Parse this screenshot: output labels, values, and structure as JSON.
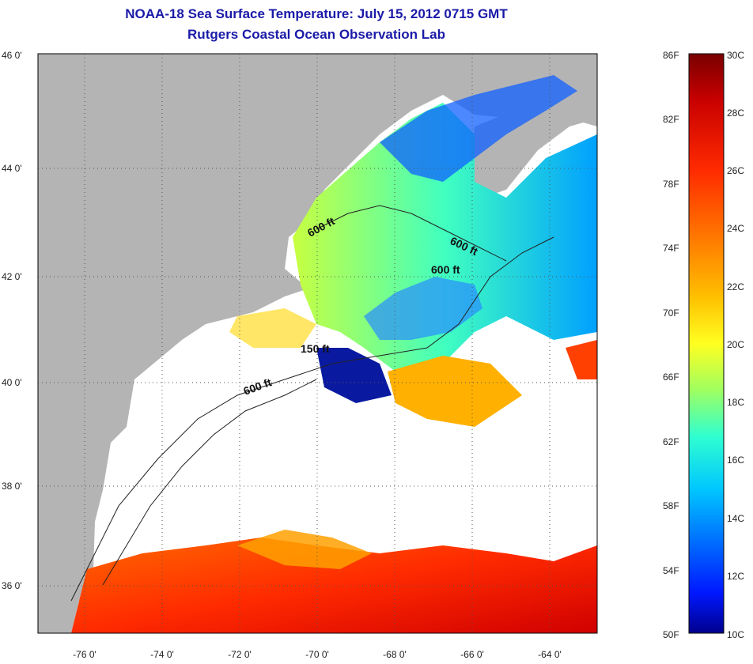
{
  "header": {
    "title": "NOAA-18 Sea Surface Temperature:  July 15, 2012 0715 GMT",
    "subtitle": "Rutgers Coastal Ocean Observation Lab"
  },
  "map": {
    "lon_ticks": [
      "-76 0'",
      "-74 0'",
      "-72 0'",
      "-70 0'",
      "-68 0'",
      "-66 0'",
      "-64 0'"
    ],
    "lat_ticks": [
      "46 0'",
      "44 0'",
      "42 0'",
      "40 0'",
      "38 0'",
      "36 0'"
    ],
    "contour_labels": [
      "600 ft",
      "600 ft",
      "600 ft",
      "150 ft",
      "600 ft"
    ],
    "colors": {
      "land": "#b4b4b4",
      "cloud": "#ffffff",
      "grid": "#555555"
    }
  },
  "colorbar": {
    "fahrenheit_labels": [
      "86F",
      "82F",
      "78F",
      "74F",
      "70F",
      "66F",
      "62F",
      "58F",
      "54F",
      "50F"
    ],
    "celsius_labels": [
      "30C",
      "28C",
      "26C",
      "24C",
      "22C",
      "20C",
      "18C",
      "16C",
      "14C",
      "12C",
      "10C"
    ],
    "gradient": [
      "#7a0000",
      "#c80000",
      "#ff2a00",
      "#ff7a00",
      "#ffc000",
      "#ffff20",
      "#a0ff60",
      "#30ffd0",
      "#00c8ff",
      "#0070ff",
      "#0018ff",
      "#00008c"
    ]
  }
}
